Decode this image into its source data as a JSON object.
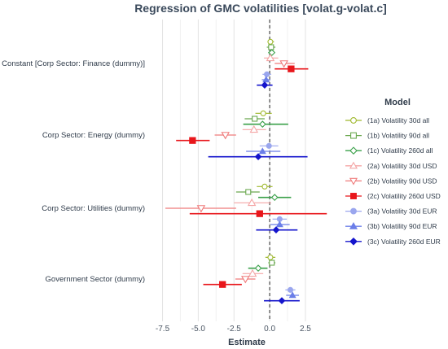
{
  "chart_data": {
    "type": "scatter",
    "subtype": "coefficient-plot with horizontal confidence intervals",
    "title": "Regression of GMC volatilities [volat.g-volat.c]",
    "xlabel": "Estimate",
    "ylabel": "",
    "xlim": [
      -8.5,
      4.5
    ],
    "xticks": [
      -7.5,
      -5.0,
      -2.5,
      0.0,
      2.5
    ],
    "xtick_labels": [
      "-7.5",
      "-5.0",
      "-2.5",
      "0.0",
      "2.5"
    ],
    "vline": 0,
    "grid": "vertical-major",
    "legend_title": "Model",
    "legend_position": "right",
    "categories": [
      "Constant [Corp Sector: Finance (dummy)]",
      "Corp Sector: Energy (dummy)",
      "Corp Sector: Utilities (dummy)",
      "Government Sector (dummy)"
    ],
    "series": [
      {
        "name": "(1a) Volatility 30d all",
        "color": "#9fb82c",
        "marker": "circle-open",
        "estimates": [
          0.05,
          -0.45,
          -0.35,
          0.05
        ],
        "ci_low": [
          -0.15,
          -1.0,
          -0.9,
          -0.3
        ],
        "ci_high": [
          0.3,
          0.15,
          0.2,
          0.4
        ]
      },
      {
        "name": "(1b) Volatility 90d all",
        "color": "#6aa84f",
        "marker": "square-open",
        "estimates": [
          0.1,
          -1.05,
          -1.5,
          0.15
        ],
        "ci_low": [
          -0.2,
          -1.75,
          -2.35,
          -0.1
        ],
        "ci_high": [
          0.4,
          -0.35,
          -0.7,
          0.4
        ]
      },
      {
        "name": "(1c) Volatility 260d all",
        "color": "#3aa04a",
        "marker": "diamond-open",
        "estimates": [
          0.15,
          -0.5,
          0.35,
          -0.8
        ],
        "ci_low": [
          -0.1,
          -1.85,
          -0.8,
          -1.5
        ],
        "ci_high": [
          0.35,
          1.3,
          1.5,
          -0.15
        ]
      },
      {
        "name": "(2a) Volatility 30d USD",
        "color": "#f4a6a6",
        "marker": "triangle-up-open",
        "estimates": [
          0.05,
          -1.1,
          -1.25,
          -1.2
        ],
        "ci_low": [
          -0.4,
          -1.9,
          -2.5,
          -1.9
        ],
        "ci_high": [
          0.6,
          -0.25,
          0.1,
          -0.45
        ]
      },
      {
        "name": "(2b) Volatility 90d USD",
        "color": "#ef7b7b",
        "marker": "triangle-down-open",
        "estimates": [
          1.0,
          -3.1,
          -4.8,
          -1.7
        ],
        "ci_low": [
          0.35,
          -3.85,
          -7.3,
          -2.4
        ],
        "ci_high": [
          1.75,
          -2.35,
          -2.35,
          -1.0
        ]
      },
      {
        "name": "(2c) Volatility 260d USD",
        "color": "#e8161b",
        "marker": "square-filled",
        "estimates": [
          1.5,
          -5.4,
          -0.7,
          -3.3
        ],
        "ci_low": [
          0.35,
          -6.55,
          -5.6,
          -4.65
        ],
        "ci_high": [
          2.7,
          -4.2,
          4.0,
          -1.95
        ]
      },
      {
        "name": "(3a) Volatility 30d EUR",
        "color": "#9aa6ee",
        "marker": "circle-filled",
        "estimates": [
          -0.2,
          -0.05,
          0.7,
          1.45
        ],
        "ci_low": [
          -0.5,
          -0.7,
          0.2,
          1.1
        ],
        "ci_high": [
          0.1,
          0.6,
          1.2,
          1.8
        ]
      },
      {
        "name": "(3b) Volatility 90d EUR",
        "color": "#6b7ee8",
        "marker": "triangle-up-filled",
        "estimates": [
          -0.25,
          -0.5,
          0.7,
          1.6
        ],
        "ci_low": [
          -0.55,
          -1.65,
          0.05,
          1.15
        ],
        "ci_high": [
          0.05,
          0.75,
          1.4,
          2.05
        ]
      },
      {
        "name": "(3c) Volatility 260d EUR",
        "color": "#1515cc",
        "marker": "diamond-filled",
        "estimates": [
          -0.35,
          -0.8,
          0.45,
          0.85
        ],
        "ci_low": [
          -0.9,
          -4.3,
          -0.95,
          -0.4
        ],
        "ci_high": [
          0.2,
          2.65,
          1.95,
          2.1
        ]
      }
    ]
  }
}
